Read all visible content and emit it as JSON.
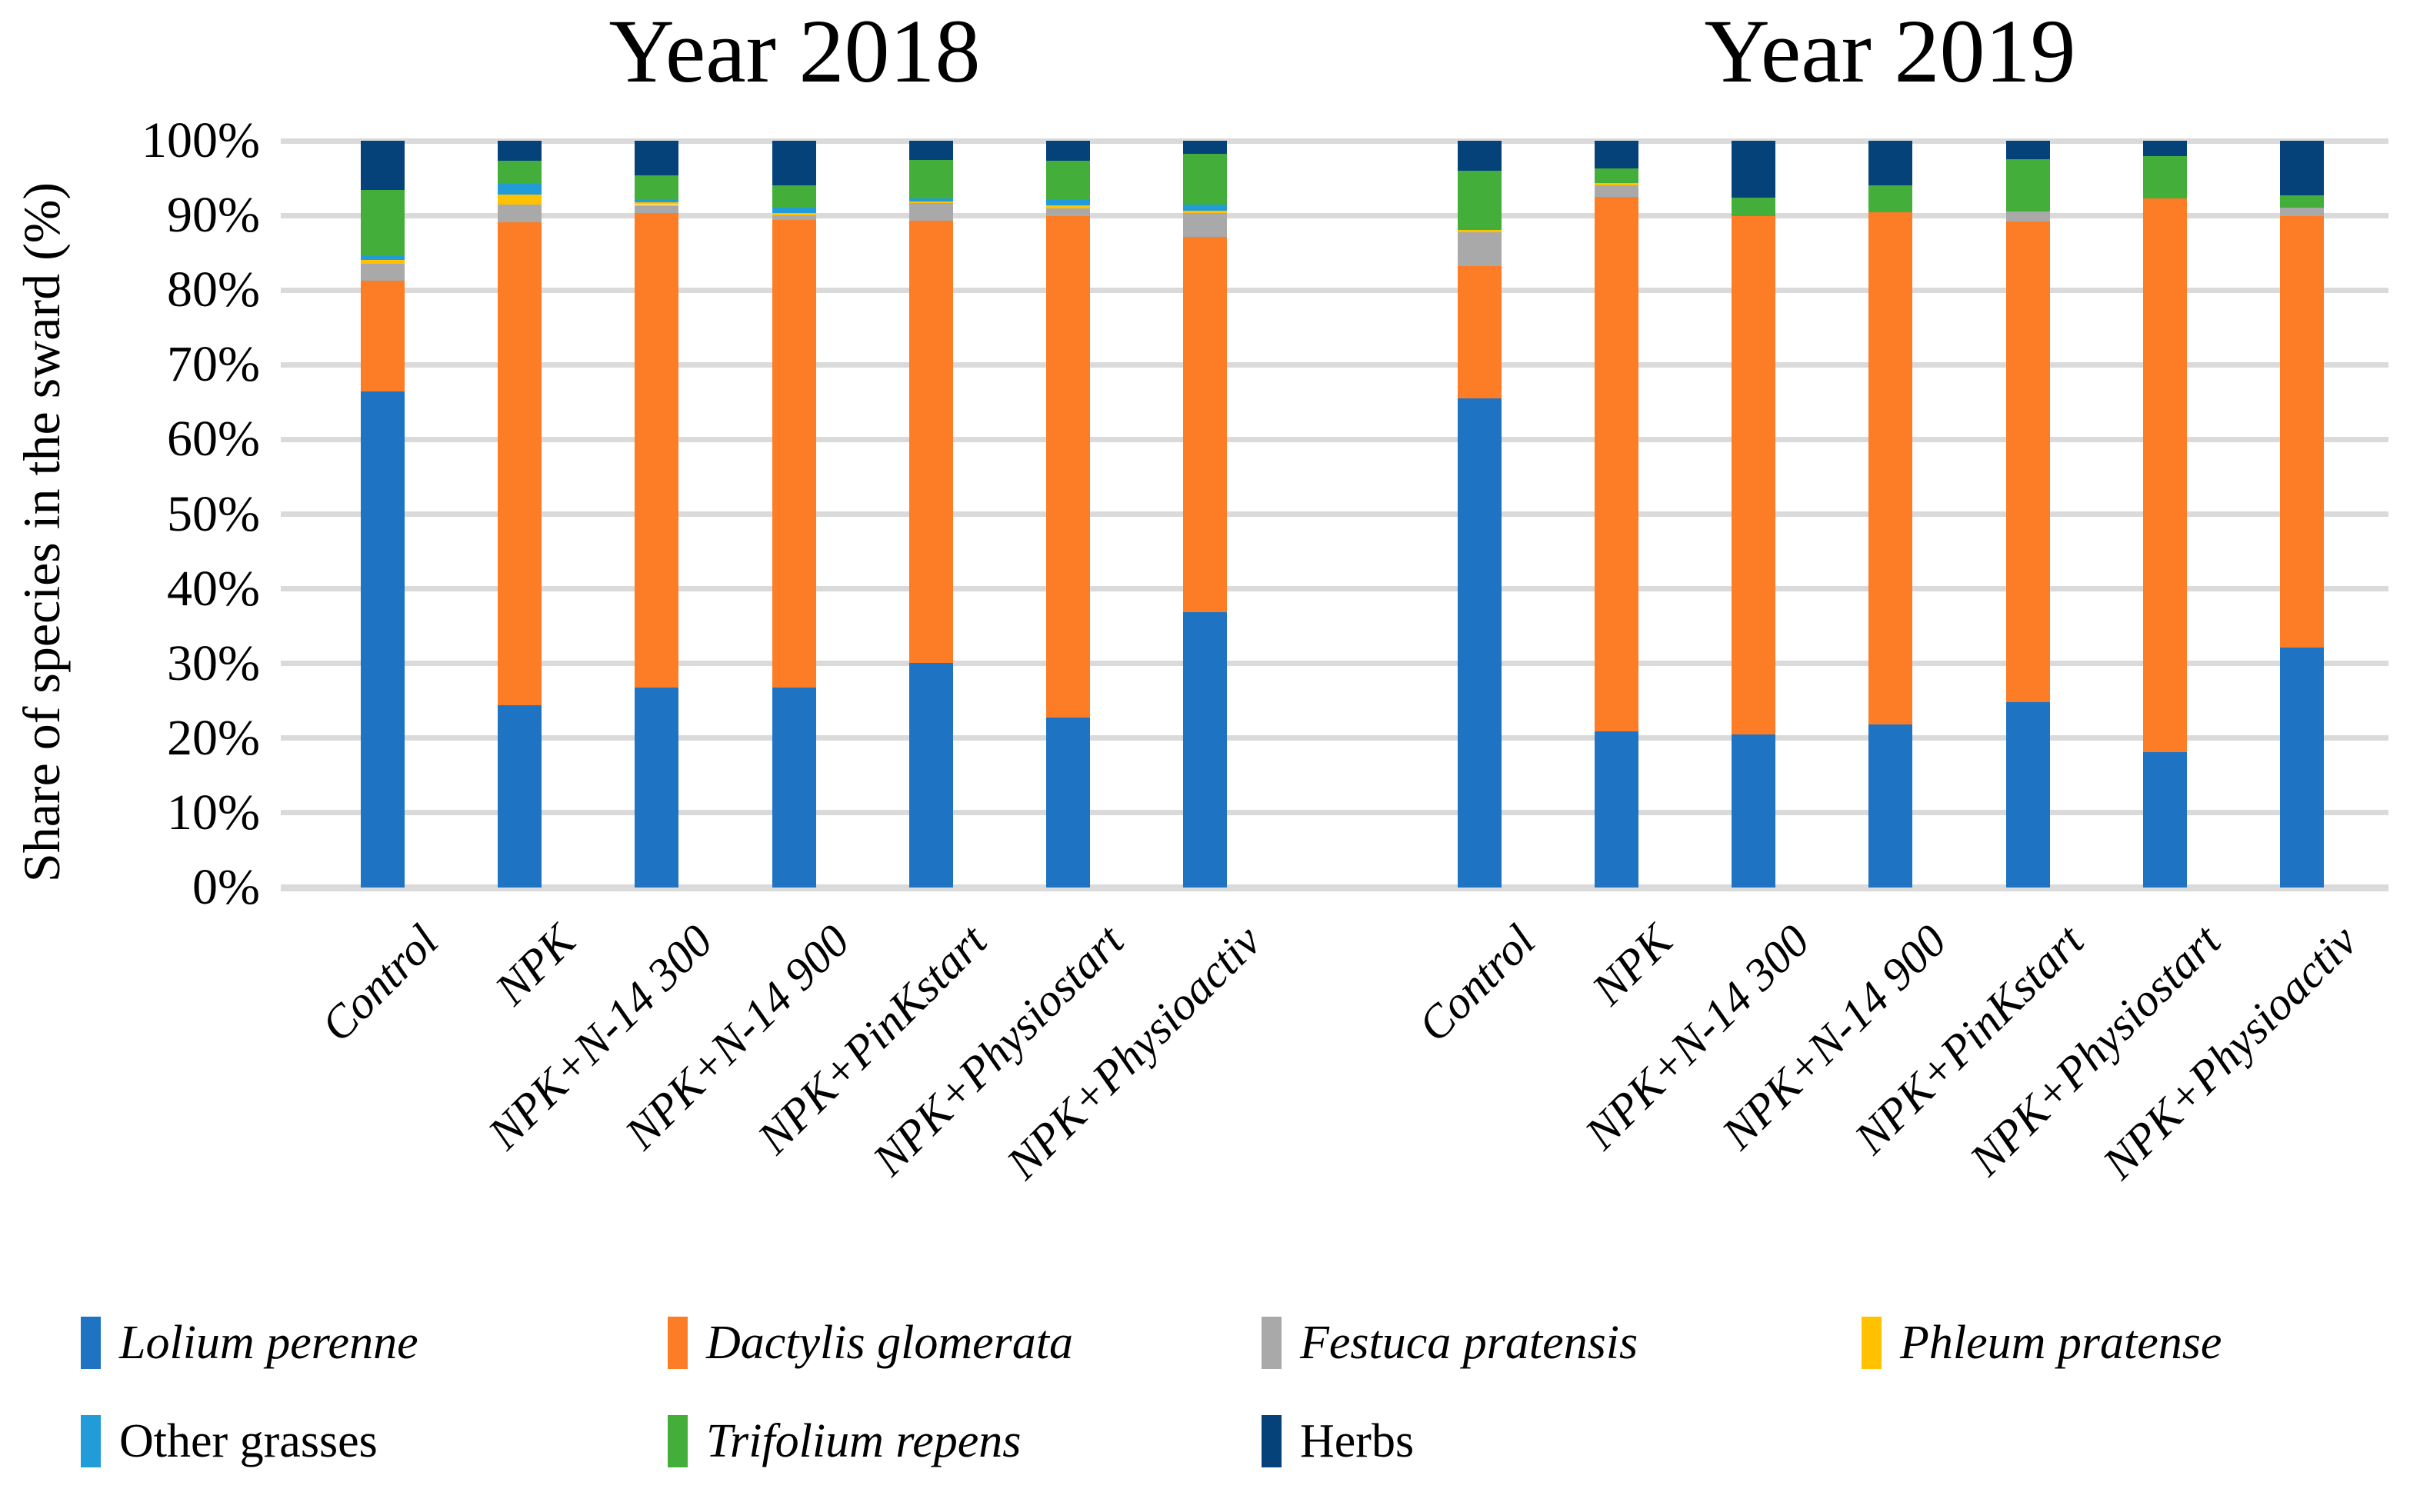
{
  "figure": {
    "y_axis_label": "Share of species in the sward (%)",
    "title_left": "Year 2018",
    "title_right": "Year 2019"
  },
  "colors": {
    "lolium_perenne": "#1E73C2",
    "dactylis_glomerata": "#FC7D25",
    "festuca_pratensis": "#A9A9A9",
    "phleum_pratense": "#FFC100",
    "other_grasses": "#219CD8",
    "trifolium_repens": "#43AE3A",
    "herbs": "#05427A",
    "gridline": "#DADADA"
  },
  "chart_data": {
    "type": "bar",
    "subtype": "stacked-100-percent",
    "ylabel": "Share of species in the sward (%)",
    "ylim": [
      0,
      100
    ],
    "y_ticks": [
      "0%",
      "10%",
      "20%",
      "30%",
      "40%",
      "50%",
      "60%",
      "70%",
      "80%",
      "90%",
      "100%"
    ],
    "grid": true,
    "legend_position": "bottom",
    "categories": [
      "Control",
      "NPK",
      "NPK+N-14 300",
      "NPK+N-14 900",
      "NPK+PinKstart",
      "NPK+Physiostart",
      "NPK+Physioactiv"
    ],
    "legend": [
      {
        "label": "Lolium perenne",
        "color": "#1E73C2",
        "italic": true
      },
      {
        "label": "Dactylis glomerata",
        "color": "#FC7D25",
        "italic": true
      },
      {
        "label": "Festuca pratensis",
        "color": "#A9A9A9",
        "italic": true
      },
      {
        "label": "Phleum pratense",
        "color": "#FFC100",
        "italic": true
      },
      {
        "label": "Other grasses",
        "color": "#219CD8",
        "italic": false
      },
      {
        "label": "Trifolium repens",
        "color": "#43AE3A",
        "italic": true
      },
      {
        "label": "Herbs",
        "color": "#05427A",
        "italic": false
      }
    ],
    "groups": [
      {
        "title": "Year 2018",
        "series": [
          {
            "name": "Lolium perenne",
            "values": [
              66.4,
              24.4,
              26.8,
              26.8,
              30.1,
              22.8,
              36.9
            ]
          },
          {
            "name": "Dactylis glomerata",
            "values": [
              14.9,
              64.7,
              63.5,
              62.6,
              59.2,
              67.1,
              50.2
            ]
          },
          {
            "name": "Festuca pratensis",
            "values": [
              2.2,
              2.4,
              1.1,
              0.6,
              2.4,
              1.0,
              3.2
            ]
          },
          {
            "name": "Phleum pratense",
            "values": [
              0.5,
              1.3,
              0.4,
              0.3,
              0.2,
              0.5,
              0.3
            ]
          },
          {
            "name": "Other grasses",
            "values": [
              0.6,
              1.4,
              0.3,
              0.7,
              0.4,
              0.7,
              0.9
            ]
          },
          {
            "name": "Trifolium repens",
            "values": [
              8.8,
              3.1,
              3.3,
              3.0,
              5.1,
              5.2,
              6.8
            ]
          },
          {
            "name": "Herbs",
            "values": [
              6.6,
              2.7,
              4.6,
              6.0,
              2.6,
              2.7,
              1.7
            ]
          }
        ]
      },
      {
        "title": "Year 2019",
        "series": [
          {
            "name": "Lolium perenne",
            "values": [
              65.5,
              20.9,
              20.5,
              21.8,
              24.8,
              18.1,
              32.1
            ]
          },
          {
            "name": "Dactylis glomerata",
            "values": [
              17.7,
              71.6,
              69.4,
              68.6,
              64.4,
              74.2,
              57.8
            ]
          },
          {
            "name": "Festuca pratensis",
            "values": [
              4.5,
              1.5,
              0.0,
              0.0,
              1.3,
              0.0,
              1.1
            ]
          },
          {
            "name": "Phleum pratense",
            "values": [
              0.4,
              0.3,
              0.0,
              0.0,
              0.0,
              0.0,
              0.0
            ]
          },
          {
            "name": "Other grasses",
            "values": [
              0.0,
              0.0,
              0.0,
              0.0,
              0.0,
              0.0,
              0.0
            ]
          },
          {
            "name": "Trifolium repens",
            "values": [
              7.9,
              2.0,
              2.5,
              3.6,
              7.0,
              5.6,
              1.7
            ]
          },
          {
            "name": "Herbs",
            "values": [
              4.0,
              3.7,
              7.6,
              6.0,
              2.5,
              2.1,
              7.3
            ]
          }
        ]
      }
    ]
  }
}
